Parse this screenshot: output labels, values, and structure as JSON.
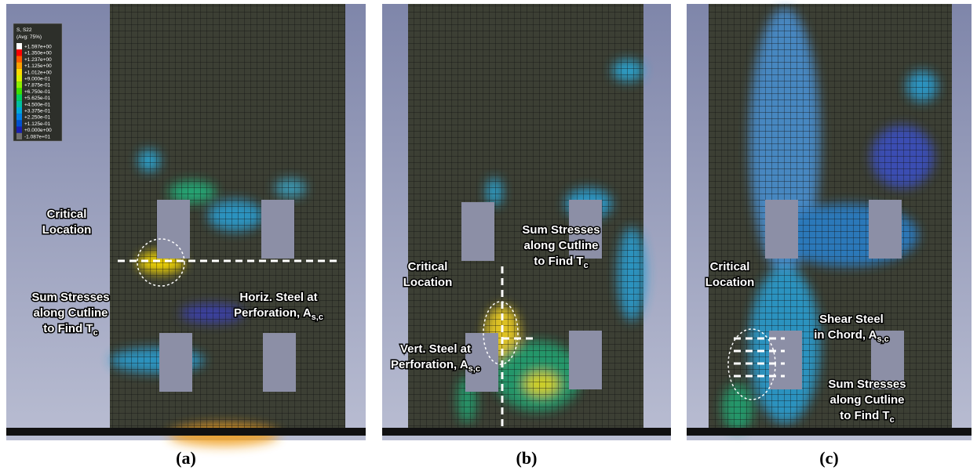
{
  "legend": {
    "title": "S, S22",
    "subtitle": "(Avg: 75%)",
    "labels": [
      "+1.597e+00",
      "+1.350e+00",
      "+1.237e+00",
      "+1.125e+00",
      "+1.012e+00",
      "+9.000e-01",
      "+7.875e-01",
      "+6.750e-01",
      "+5.625e-01",
      "+4.500e-01",
      "+3.375e-01",
      "+2.250e-01",
      "+1.125e-01",
      "+0.000e+00",
      "-1.087e+01"
    ]
  },
  "panels": [
    {
      "label": "(a)",
      "annotations": [
        {
          "lines": [
            {
              "text": "Critical"
            },
            {
              "text": "Location"
            }
          ]
        },
        {
          "lines": [
            {
              "text": "Sum Stresses"
            },
            {
              "text": "along Cutline"
            },
            {
              "text": "to Find T",
              "sub": "c"
            }
          ]
        },
        {
          "lines": [
            {
              "text": "Horiz. Steel at"
            },
            {
              "text": "Perforation, A",
              "sub": "s,c"
            }
          ]
        }
      ]
    },
    {
      "label": "(b)",
      "annotations": [
        {
          "lines": [
            {
              "text": "Critical"
            },
            {
              "text": "Location"
            }
          ]
        },
        {
          "lines": [
            {
              "text": "Sum Stresses"
            },
            {
              "text": "along Cutline"
            },
            {
              "text": "to Find T",
              "sub": "c"
            }
          ]
        },
        {
          "lines": [
            {
              "text": "Vert. Steel at"
            },
            {
              "text": "Perforation, A",
              "sub": "s,c"
            }
          ]
        }
      ]
    },
    {
      "label": "(c)",
      "annotations": [
        {
          "lines": [
            {
              "text": "Critical"
            },
            {
              "text": "Location"
            }
          ]
        },
        {
          "lines": [
            {
              "text": "Shear Steel"
            },
            {
              "text": "in Chord, A",
              "sub": "s,c"
            }
          ]
        },
        {
          "lines": [
            {
              "text": "Sum Stresses"
            },
            {
              "text": "along Cutline"
            },
            {
              "text": "to Find T",
              "sub": "c"
            }
          ]
        }
      ]
    }
  ]
}
